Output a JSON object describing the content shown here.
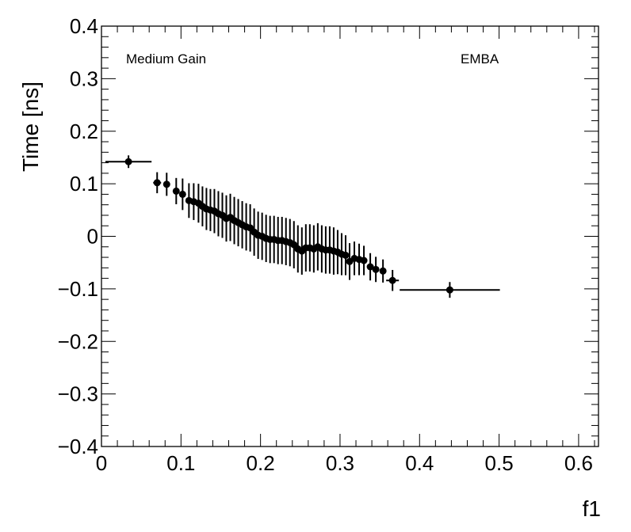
{
  "chart_data": {
    "type": "scatter",
    "xlabel": "f1",
    "ylabel": "Time [ns]",
    "xlim": [
      0,
      0.625
    ],
    "ylim": [
      -0.4,
      0.4
    ],
    "grid": false,
    "x_ticks": [
      "0",
      "0.1",
      "0.2",
      "0.3",
      "0.4",
      "0.5",
      "0.6"
    ],
    "y_ticks": [
      "−0.4",
      "−0.3",
      "−0.2",
      "−0.1",
      "0",
      "0.1",
      "0.2",
      "0.3",
      "0.4"
    ],
    "annotations": {
      "left": "Medium Gain",
      "right": "EMBA"
    },
    "series": [
      {
        "points": [
          {
            "x": 0.034,
            "y": 0.142,
            "xerr": 0.029,
            "yerr": 0.012
          },
          {
            "x": 0.07,
            "y": 0.102,
            "xerr": 0.005,
            "yerr": 0.02
          },
          {
            "x": 0.082,
            "y": 0.099,
            "xerr": 0.004,
            "yerr": 0.022
          },
          {
            "x": 0.094,
            "y": 0.086,
            "xerr": 0.003,
            "yerr": 0.025
          },
          {
            "x": 0.102,
            "y": 0.08,
            "xerr": 0.003,
            "yerr": 0.03
          },
          {
            "x": 0.11,
            "y": 0.068,
            "xerr": 0.002,
            "yerr": 0.033
          },
          {
            "x": 0.116,
            "y": 0.066,
            "xerr": 0.002,
            "yerr": 0.035
          },
          {
            "x": 0.122,
            "y": 0.063,
            "xerr": 0.002,
            "yerr": 0.037
          },
          {
            "x": 0.127,
            "y": 0.057,
            "xerr": 0.002,
            "yerr": 0.038
          },
          {
            "x": 0.132,
            "y": 0.052,
            "xerr": 0.002,
            "yerr": 0.04
          },
          {
            "x": 0.137,
            "y": 0.05,
            "xerr": 0.002,
            "yerr": 0.04
          },
          {
            "x": 0.142,
            "y": 0.048,
            "xerr": 0.002,
            "yerr": 0.042
          },
          {
            "x": 0.147,
            "y": 0.043,
            "xerr": 0.002,
            "yerr": 0.043
          },
          {
            "x": 0.152,
            "y": 0.04,
            "xerr": 0.002,
            "yerr": 0.043
          },
          {
            "x": 0.157,
            "y": 0.034,
            "xerr": 0.002,
            "yerr": 0.044
          },
          {
            "x": 0.162,
            "y": 0.036,
            "xerr": 0.002,
            "yerr": 0.045
          },
          {
            "x": 0.167,
            "y": 0.03,
            "xerr": 0.002,
            "yerr": 0.045
          },
          {
            "x": 0.172,
            "y": 0.026,
            "xerr": 0.002,
            "yerr": 0.045
          },
          {
            "x": 0.177,
            "y": 0.022,
            "xerr": 0.002,
            "yerr": 0.045
          },
          {
            "x": 0.182,
            "y": 0.018,
            "xerr": 0.002,
            "yerr": 0.045
          },
          {
            "x": 0.187,
            "y": 0.016,
            "xerr": 0.002,
            "yerr": 0.045
          },
          {
            "x": 0.192,
            "y": 0.008,
            "xerr": 0.002,
            "yerr": 0.045
          },
          {
            "x": 0.197,
            "y": 0.002,
            "xerr": 0.002,
            "yerr": 0.045
          },
          {
            "x": 0.202,
            "y": 0.0,
            "xerr": 0.002,
            "yerr": 0.045
          },
          {
            "x": 0.207,
            "y": -0.004,
            "xerr": 0.002,
            "yerr": 0.045
          },
          {
            "x": 0.212,
            "y": -0.006,
            "xerr": 0.002,
            "yerr": 0.045
          },
          {
            "x": 0.217,
            "y": -0.006,
            "xerr": 0.002,
            "yerr": 0.045
          },
          {
            "x": 0.222,
            "y": -0.008,
            "xerr": 0.002,
            "yerr": 0.045
          },
          {
            "x": 0.227,
            "y": -0.008,
            "xerr": 0.002,
            "yerr": 0.045
          },
          {
            "x": 0.232,
            "y": -0.01,
            "xerr": 0.002,
            "yerr": 0.045
          },
          {
            "x": 0.237,
            "y": -0.012,
            "xerr": 0.002,
            "yerr": 0.045
          },
          {
            "x": 0.242,
            "y": -0.016,
            "xerr": 0.002,
            "yerr": 0.045
          },
          {
            "x": 0.247,
            "y": -0.024,
            "xerr": 0.002,
            "yerr": 0.045
          },
          {
            "x": 0.252,
            "y": -0.028,
            "xerr": 0.002,
            "yerr": 0.045
          },
          {
            "x": 0.257,
            "y": -0.022,
            "xerr": 0.002,
            "yerr": 0.045
          },
          {
            "x": 0.262,
            "y": -0.022,
            "xerr": 0.002,
            "yerr": 0.045
          },
          {
            "x": 0.267,
            "y": -0.024,
            "xerr": 0.002,
            "yerr": 0.045
          },
          {
            "x": 0.272,
            "y": -0.02,
            "xerr": 0.002,
            "yerr": 0.045
          },
          {
            "x": 0.277,
            "y": -0.024,
            "xerr": 0.002,
            "yerr": 0.045
          },
          {
            "x": 0.282,
            "y": -0.026,
            "xerr": 0.002,
            "yerr": 0.045
          },
          {
            "x": 0.287,
            "y": -0.026,
            "xerr": 0.002,
            "yerr": 0.045
          },
          {
            "x": 0.292,
            "y": -0.028,
            "xerr": 0.002,
            "yerr": 0.045
          },
          {
            "x": 0.297,
            "y": -0.03,
            "xerr": 0.002,
            "yerr": 0.042
          },
          {
            "x": 0.302,
            "y": -0.034,
            "xerr": 0.002,
            "yerr": 0.04
          },
          {
            "x": 0.307,
            "y": -0.036,
            "xerr": 0.002,
            "yerr": 0.038
          },
          {
            "x": 0.312,
            "y": -0.048,
            "xerr": 0.002,
            "yerr": 0.035
          },
          {
            "x": 0.318,
            "y": -0.042,
            "xerr": 0.002,
            "yerr": 0.032
          },
          {
            "x": 0.324,
            "y": -0.044,
            "xerr": 0.002,
            "yerr": 0.03
          },
          {
            "x": 0.33,
            "y": -0.046,
            "xerr": 0.003,
            "yerr": 0.028
          },
          {
            "x": 0.338,
            "y": -0.058,
            "xerr": 0.003,
            "yerr": 0.026
          },
          {
            "x": 0.345,
            "y": -0.063,
            "xerr": 0.004,
            "yerr": 0.024
          },
          {
            "x": 0.354,
            "y": -0.066,
            "xerr": 0.004,
            "yerr": 0.022
          },
          {
            "x": 0.366,
            "y": -0.084,
            "xerr": 0.008,
            "yerr": 0.02
          },
          {
            "x": 0.438,
            "y": -0.102,
            "xerr": 0.063,
            "yerr": 0.015
          }
        ]
      }
    ]
  }
}
